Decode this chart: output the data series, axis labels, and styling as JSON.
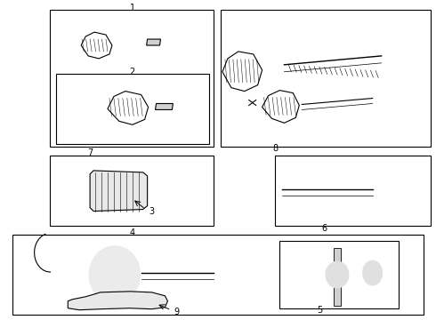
{
  "bg_color": "#ffffff",
  "border_color": "#000000",
  "text_color": "#000000",
  "fig_width": 4.9,
  "fig_height": 3.6,
  "dpi": 100
}
